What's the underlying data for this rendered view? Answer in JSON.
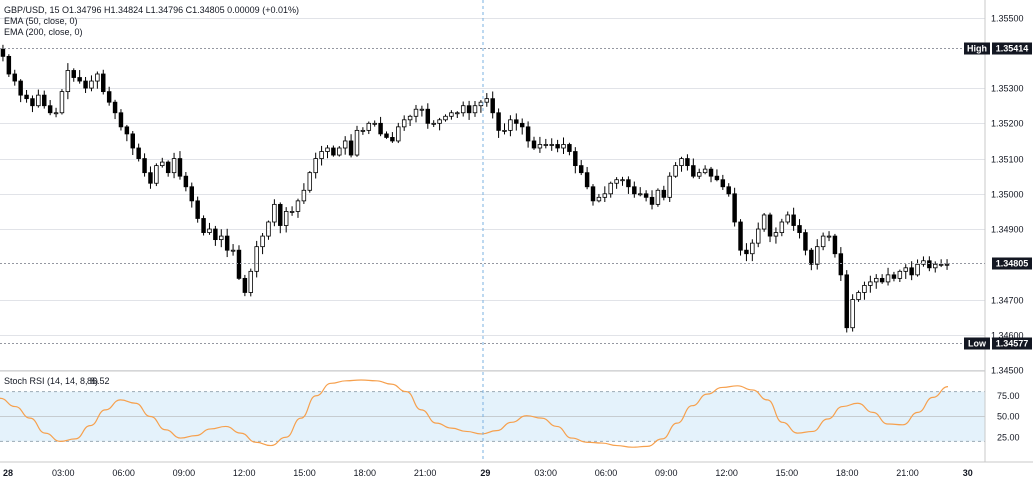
{
  "legend": {
    "symbol_line": "GBP/USD, 15  O1.34796  H1.34824  L1.34796  C1.34805  0.00009 (+0.01%)",
    "ema50": "EMA (50, close, 0)",
    "ema200": "EMA (200, close, 0)"
  },
  "stoch": {
    "label": "Stoch RSI (14, 14, 8, 8)",
    "value": "86.52",
    "color": "#f6a04d",
    "band_color": "#d9ecfa"
  },
  "tags": {
    "high_label": "High",
    "high_value": "1.35414",
    "last_value": "1.34805",
    "low_label": "Low",
    "low_value": "1.34577"
  },
  "price_axis": [
    "1.35500",
    "1.35300",
    "1.35200",
    "1.35100",
    "1.35000",
    "1.34900",
    "1.34700",
    "1.34600",
    "1.34500"
  ],
  "rsi_axis": [
    "75.00",
    "50.00",
    "25.00"
  ],
  "time_axis": [
    {
      "label": "28",
      "bold": true
    },
    {
      "label": "03:00"
    },
    {
      "label": "06:00"
    },
    {
      "label": "09:00"
    },
    {
      "label": "12:00"
    },
    {
      "label": "15:00"
    },
    {
      "label": "18:00"
    },
    {
      "label": "21:00"
    },
    {
      "label": "29",
      "bold": true
    },
    {
      "label": "03:00"
    },
    {
      "label": "06:00"
    },
    {
      "label": "09:00"
    },
    {
      "label": "12:00"
    },
    {
      "label": "15:00"
    },
    {
      "label": "18:00"
    },
    {
      "label": "21:00"
    },
    {
      "label": "30",
      "bold": true
    }
  ],
  "chart_data": {
    "type": "candlestick",
    "interval_minutes": 15,
    "up_color": "#ffffff",
    "down_color": "#000000",
    "price_range": [
      1.345,
      1.3555
    ],
    "high": 1.35414,
    "low": 1.34577,
    "last": 1.34805,
    "closes": [
      1.3539,
      1.3534,
      1.3532,
      1.3528,
      1.3527,
      1.3525,
      1.3528,
      1.3525,
      1.3523,
      1.3523,
      1.3529,
      1.3535,
      1.3533,
      1.3532,
      1.353,
      1.3532,
      1.3534,
      1.3529,
      1.3526,
      1.3523,
      1.3519,
      1.3517,
      1.3513,
      1.351,
      1.3506,
      1.3503,
      1.3508,
      1.3509,
      1.3506,
      1.351,
      1.3505,
      1.3502,
      1.3498,
      1.3493,
      1.3489,
      1.349,
      1.3487,
      1.3488,
      1.3484,
      1.3484,
      1.3476,
      1.3472,
      1.3478,
      1.3485,
      1.3488,
      1.3492,
      1.3497,
      1.3491,
      1.3495,
      1.3495,
      1.3498,
      1.3501,
      1.3506,
      1.351,
      1.3512,
      1.3513,
      1.3511,
      1.3513,
      1.3515,
      1.3511,
      1.3518,
      1.3518,
      1.352,
      1.352,
      1.3517,
      1.3516,
      1.3515,
      1.3519,
      1.3521,
      1.3522,
      1.3524,
      1.3524,
      1.352,
      1.352,
      1.3521,
      1.3522,
      1.3523,
      1.3523,
      1.3525,
      1.3523,
      1.3525,
      1.3526,
      1.3527,
      1.3523,
      1.3518,
      1.3518,
      1.3521,
      1.352,
      1.3519,
      1.3515,
      1.3513,
      1.3514,
      1.3514,
      1.3514,
      1.3513,
      1.3514,
      1.3512,
      1.3508,
      1.3506,
      1.3502,
      1.3498,
      1.3499,
      1.35,
      1.3503,
      1.3504,
      1.3504,
      1.3502,
      1.35,
      1.35,
      1.3499,
      1.3497,
      1.3501,
      1.3499,
      1.3505,
      1.3508,
      1.351,
      1.3508,
      1.3505,
      1.3506,
      1.3507,
      1.3505,
      1.3504,
      1.3502,
      1.35,
      1.3492,
      1.3484,
      1.3483,
      1.3486,
      1.349,
      1.3494,
      1.3488,
      1.3489,
      1.3492,
      1.3494,
      1.3491,
      1.3489,
      1.3484,
      1.348,
      1.3485,
      1.3488,
      1.3488,
      1.3483,
      1.3477,
      1.3462,
      1.347,
      1.3472,
      1.3474,
      1.3475,
      1.3476,
      1.3475,
      1.3477,
      1.3476,
      1.3478,
      1.3479,
      1.3477,
      1.348,
      1.3481,
      1.3479,
      1.348,
      1.348,
      1.348
    ],
    "stoch_rsi": {
      "range": [
        0,
        100
      ],
      "bands": [
        20,
        80
      ],
      "values": [
        72,
        62,
        48,
        30,
        20,
        23,
        39,
        58,
        70,
        66,
        50,
        34,
        24,
        27,
        35,
        38,
        30,
        19,
        15,
        25,
        48,
        75,
        90,
        93,
        94,
        93,
        89,
        80,
        58,
        42,
        36,
        32,
        29,
        33,
        43,
        51,
        48,
        38,
        24,
        19,
        18,
        15,
        13,
        14,
        23,
        42,
        63,
        77,
        85,
        87,
        82,
        70,
        43,
        30,
        32,
        47,
        62,
        66,
        55,
        41,
        40,
        55,
        73,
        86
      ]
    }
  }
}
